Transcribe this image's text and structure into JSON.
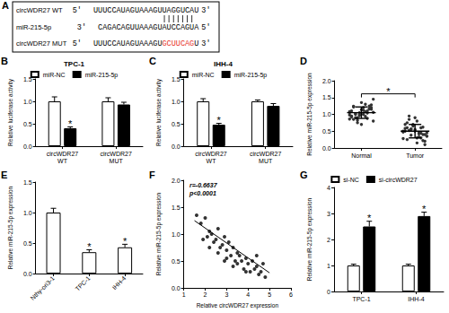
{
  "panel_a": {
    "label": "A",
    "rows": [
      {
        "name": "circWDR27 WT",
        "left": "5'",
        "sequence": "UUUCCAUAGUAAAGUUAGGUCAU",
        "right": "3'"
      },
      {
        "name": "miR-215-5p",
        "left": "3'",
        "sequence": "CAGACAGUUAAAGUAUCCAGUA",
        "right": "5'"
      },
      {
        "name": "circWDR27 MUT",
        "left": "5'",
        "sequence": "UUUCCAUAGUAAAGU",
        "mutation": "GCUUCAG",
        "sequence_end": "U",
        "right": "3'",
        "mutation_color": "#e8332a"
      }
    ]
  },
  "chart_data": [
    {
      "panel": "B",
      "type": "bar",
      "title": "TPC-1",
      "y_label": "Relative luciferase activity",
      "categories": [
        "circWDR27\nWT",
        "circWDR27\nMUT"
      ],
      "series": [
        {
          "name": "miR-NC",
          "color": "#ffffff",
          "values": [
            1.0,
            1.0
          ],
          "errors": [
            0.1,
            0.08
          ]
        },
        {
          "name": "miR-215-5p",
          "color": "#000000",
          "values": [
            0.4,
            0.93
          ],
          "errors": [
            0.03,
            0.05
          ],
          "significance": [
            "*",
            null
          ]
        }
      ],
      "ylim": [
        0,
        1.5
      ],
      "yticks": [
        {
          "value": 0,
          "label": "0.0"
        },
        {
          "value": 0.5,
          "label": "0.5"
        },
        {
          "value": 1,
          "label": "1.0"
        },
        {
          "value": 1.5,
          "label": "1.5"
        }
      ],
      "legend": "top",
      "grid": false
    },
    {
      "panel": "C",
      "type": "bar",
      "title": "IHH-4",
      "y_label": "Relative luciferase activity",
      "categories": [
        "circWDR27\nWT",
        "circWDR27\nMUT"
      ],
      "series": [
        {
          "name": "miR-NC",
          "color": "#ffffff",
          "values": [
            1.0,
            1.0
          ],
          "errors": [
            0.06,
            0.03
          ]
        },
        {
          "name": "miR-215-5p",
          "color": "#000000",
          "values": [
            0.48,
            0.9
          ],
          "errors": [
            0.03,
            0.05
          ],
          "significance": [
            "*",
            null
          ]
        }
      ],
      "ylim": [
        0,
        1.5
      ],
      "yticks": [
        {
          "value": 0,
          "label": "0.0"
        },
        {
          "value": 0.5,
          "label": "0.5"
        },
        {
          "value": 1,
          "label": "1.0"
        },
        {
          "value": 1.5,
          "label": "1.5"
        }
      ],
      "legend": "top",
      "grid": false
    },
    {
      "panel": "D",
      "type": "strip",
      "y_label": "Relative miR-215-5p expression",
      "color": "#333333",
      "marker": "circle",
      "categories": [
        "Normal",
        "Tumor"
      ],
      "groups": [
        {
          "values": [
            1.05,
            1.2,
            0.95,
            1.3,
            0.85,
            1.1,
            1.0,
            1.25,
            0.9,
            1.15,
            1.05,
            0.8,
            1.35,
            0.98,
            1.12,
            0.92,
            1.08,
            1.22,
            0.88,
            1.02,
            1.18,
            0.75,
            1.28,
            0.96,
            1.06,
            1.14,
            0.86,
            1.0,
            1.1,
            0.94,
            1.24,
            1.04,
            0.9,
            1.16,
            0.82,
            1.2,
            1.0,
            1.45,
            0.7,
            1.08
          ],
          "mean": 1.05,
          "sd": 0.17
        },
        {
          "values": [
            0.5,
            0.3,
            0.7,
            0.45,
            0.25,
            0.6,
            0.85,
            0.4,
            0.55,
            0.2,
            0.65,
            0.35,
            0.9,
            0.48,
            0.15,
            0.58,
            0.42,
            0.75,
            0.3,
            0.52,
            0.62,
            0.38,
            0.1,
            0.68,
            0.45,
            0.55,
            0.28,
            0.8,
            0.5,
            0.33,
            0.6,
            0.44,
            0.95,
            0.22,
            0.57,
            0.4,
            0.7,
            0.35,
            0.5,
            0.48
          ],
          "mean": 0.5,
          "sd": 0.2
        }
      ],
      "significance": "*",
      "ylim": [
        0,
        2
      ],
      "yticks": [
        {
          "value": 0,
          "label": "0.0"
        },
        {
          "value": 0.5,
          "label": "0.5"
        },
        {
          "value": 1,
          "label": "1.0"
        },
        {
          "value": 1.5,
          "label": "1.5"
        },
        {
          "value": 2,
          "label": "2.0"
        }
      ],
      "grid": false
    },
    {
      "panel": "E",
      "type": "bar",
      "y_label": "Relative miR-215-5p expression",
      "color": "#ffffff",
      "categories": [
        "Nthy-ori3-1",
        "TPC-1",
        "IHH-4"
      ],
      "values": [
        1.0,
        0.35,
        0.43
      ],
      "errors": [
        0.07,
        0.04,
        0.05
      ],
      "significance": [
        null,
        "*",
        "*"
      ],
      "ylim": [
        0,
        1.5
      ],
      "yticks": [
        {
          "value": 0,
          "label": "0.0"
        },
        {
          "value": 0.5,
          "label": "0.5"
        },
        {
          "value": 1,
          "label": "1.0"
        },
        {
          "value": 1.5,
          "label": "1.5"
        }
      ],
      "grid": false
    },
    {
      "panel": "F",
      "type": "scatter",
      "x_label": "Relative circWDR27 expression",
      "y_label": "Relative miR-215-5p expression",
      "color": "#000000",
      "marker": "circle",
      "x": [
        1.6,
        1.8,
        2.0,
        2.1,
        2.2,
        2.3,
        2.4,
        2.5,
        2.6,
        2.7,
        2.8,
        2.9,
        3.0,
        3.0,
        3.1,
        3.2,
        3.3,
        3.4,
        3.5,
        3.5,
        3.6,
        3.7,
        3.8,
        3.9,
        4.0,
        4.1,
        4.2,
        4.3,
        4.4,
        4.5,
        4.6,
        4.7,
        4.8,
        2.2,
        2.9,
        3.3,
        3.9,
        4.4,
        1.9,
        2.6
      ],
      "values": [
        1.35,
        1.2,
        1.3,
        0.95,
        1.05,
        1.0,
        0.85,
        0.9,
        1.1,
        0.75,
        0.8,
        0.95,
        0.7,
        0.55,
        0.85,
        0.6,
        0.75,
        0.5,
        0.65,
        0.45,
        0.6,
        0.5,
        0.35,
        0.55,
        0.45,
        0.3,
        0.5,
        0.35,
        0.4,
        0.25,
        0.3,
        0.45,
        0.2,
        0.75,
        0.5,
        0.4,
        0.3,
        0.6,
        0.9,
        0.65
      ],
      "fit": {
        "x": [
          1.5,
          5.0
        ],
        "y": [
          1.25,
          0.28
        ]
      },
      "annotations": [
        "r=-0.6637",
        "p<0.0001"
      ],
      "xlim": [
        1,
        6
      ],
      "xticks": [
        1,
        2,
        3,
        4,
        5,
        6
      ],
      "ylim": [
        0,
        2
      ],
      "yticks": [
        {
          "value": 0,
          "label": "0.0"
        },
        {
          "value": 0.5,
          "label": "0.5"
        },
        {
          "value": 1,
          "label": "1.0"
        },
        {
          "value": 1.5,
          "label": "1.5"
        },
        {
          "value": 2,
          "label": "2.0"
        }
      ],
      "grid": false
    },
    {
      "panel": "G",
      "type": "bar",
      "y_label": "Relative miR-215-5p expression",
      "categories": [
        "TPC-1",
        "IHH-4"
      ],
      "series": [
        {
          "name": "si-NC",
          "color": "#ffffff",
          "values": [
            1.0,
            1.0
          ],
          "errors": [
            0.05,
            0.05
          ]
        },
        {
          "name": "si-circWDR27",
          "color": "#000000",
          "values": [
            2.5,
            2.9
          ],
          "errors": [
            0.2,
            0.15
          ],
          "significance": [
            "*",
            "*"
          ]
        }
      ],
      "ylim": [
        0,
        4
      ],
      "yticks": [
        0,
        1,
        2,
        3,
        4
      ],
      "legend": "top",
      "grid": false
    }
  ]
}
